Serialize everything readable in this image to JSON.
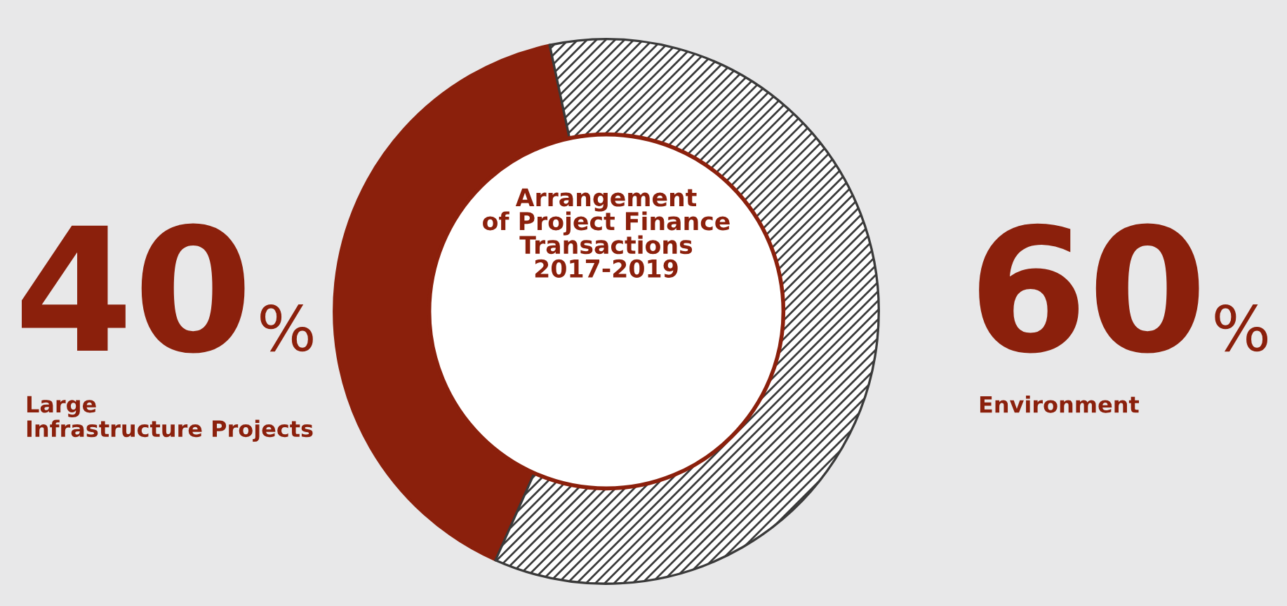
{
  "chart_data": {
    "type": "donut",
    "title": "Arrangement\nof Project Finance\nTransactions\n2017-2019",
    "categories": [
      "Large\nInfrastructure Projects",
      "Environment"
    ],
    "values": [
      40,
      60
    ],
    "colors": [
      "#8b200c",
      "#3a3a3a"
    ],
    "value_labels": [
      "40%",
      "60%"
    ]
  }
}
